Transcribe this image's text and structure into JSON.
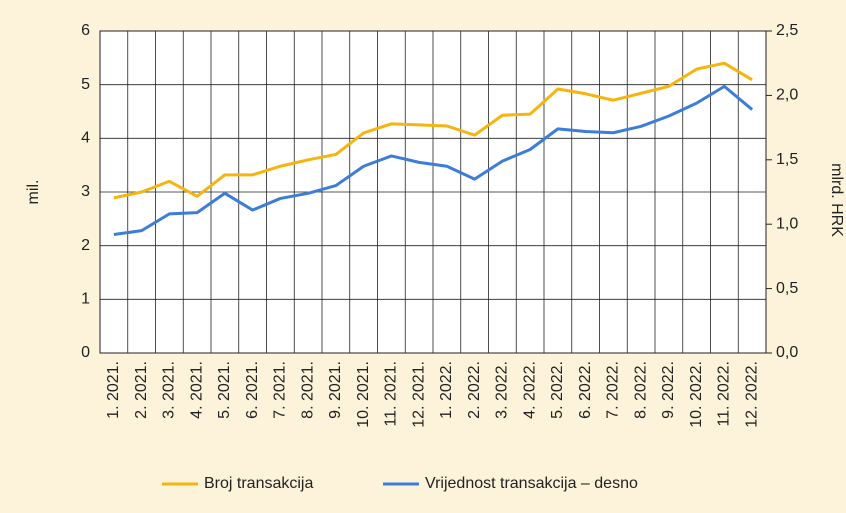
{
  "chart_data": {
    "type": "line",
    "categories": [
      "1. 2021.",
      "2. 2021.",
      "3. 2021.",
      "4. 2021.",
      "5. 2021.",
      "6. 2021.",
      "7. 2021.",
      "8. 2021.",
      "9. 2021.",
      "10. 2021.",
      "11. 2021.",
      "12. 2021.",
      "1. 2022.",
      "2. 2022.",
      "3. 2022.",
      "4. 2022.",
      "5. 2022.",
      "6. 2022.",
      "7. 2022.",
      "8. 2022.",
      "9. 2022.",
      "10. 2022.",
      "11. 2022.",
      "12. 2022."
    ],
    "series": [
      {
        "name": "Broj transakcija",
        "color": "#f6b40e",
        "values": [
          2.89,
          3.0,
          3.2,
          2.92,
          3.32,
          3.32,
          3.48,
          3.6,
          3.7,
          4.1,
          4.27,
          4.25,
          4.23,
          4.06,
          4.43,
          4.45,
          4.92,
          4.83,
          4.71,
          4.84,
          4.97,
          5.29,
          5.4,
          5.09
        ]
      },
      {
        "name": "Vrijednost transakcija – desno",
        "color": "#3b7dd8",
        "axis": "y2",
        "values": [
          0.92,
          0.95,
          1.08,
          1.09,
          1.24,
          1.11,
          1.2,
          1.24,
          1.3,
          1.45,
          1.53,
          1.48,
          1.45,
          1.35,
          1.49,
          1.58,
          1.74,
          1.72,
          1.71,
          1.76,
          1.84,
          1.94,
          2.07,
          1.89
        ]
      }
    ],
    "ylabel": "mil.",
    "y2label": "mlrd. HRK",
    "ylim": [
      0,
      6
    ],
    "yticks": [
      0,
      1,
      2,
      3,
      4,
      5,
      6
    ],
    "y2lim": [
      0,
      2.5
    ],
    "y2ticks": [
      {
        "value": 0,
        "label": "0,0"
      },
      {
        "value": 0.5,
        "label": "0,5"
      },
      {
        "value": 1,
        "label": "1,0"
      },
      {
        "value": 1.5,
        "label": "1,5"
      },
      {
        "value": 2,
        "label": "2,0"
      },
      {
        "value": 2.5,
        "label": "2,5"
      }
    ],
    "grid": true,
    "legend": "bottom"
  }
}
